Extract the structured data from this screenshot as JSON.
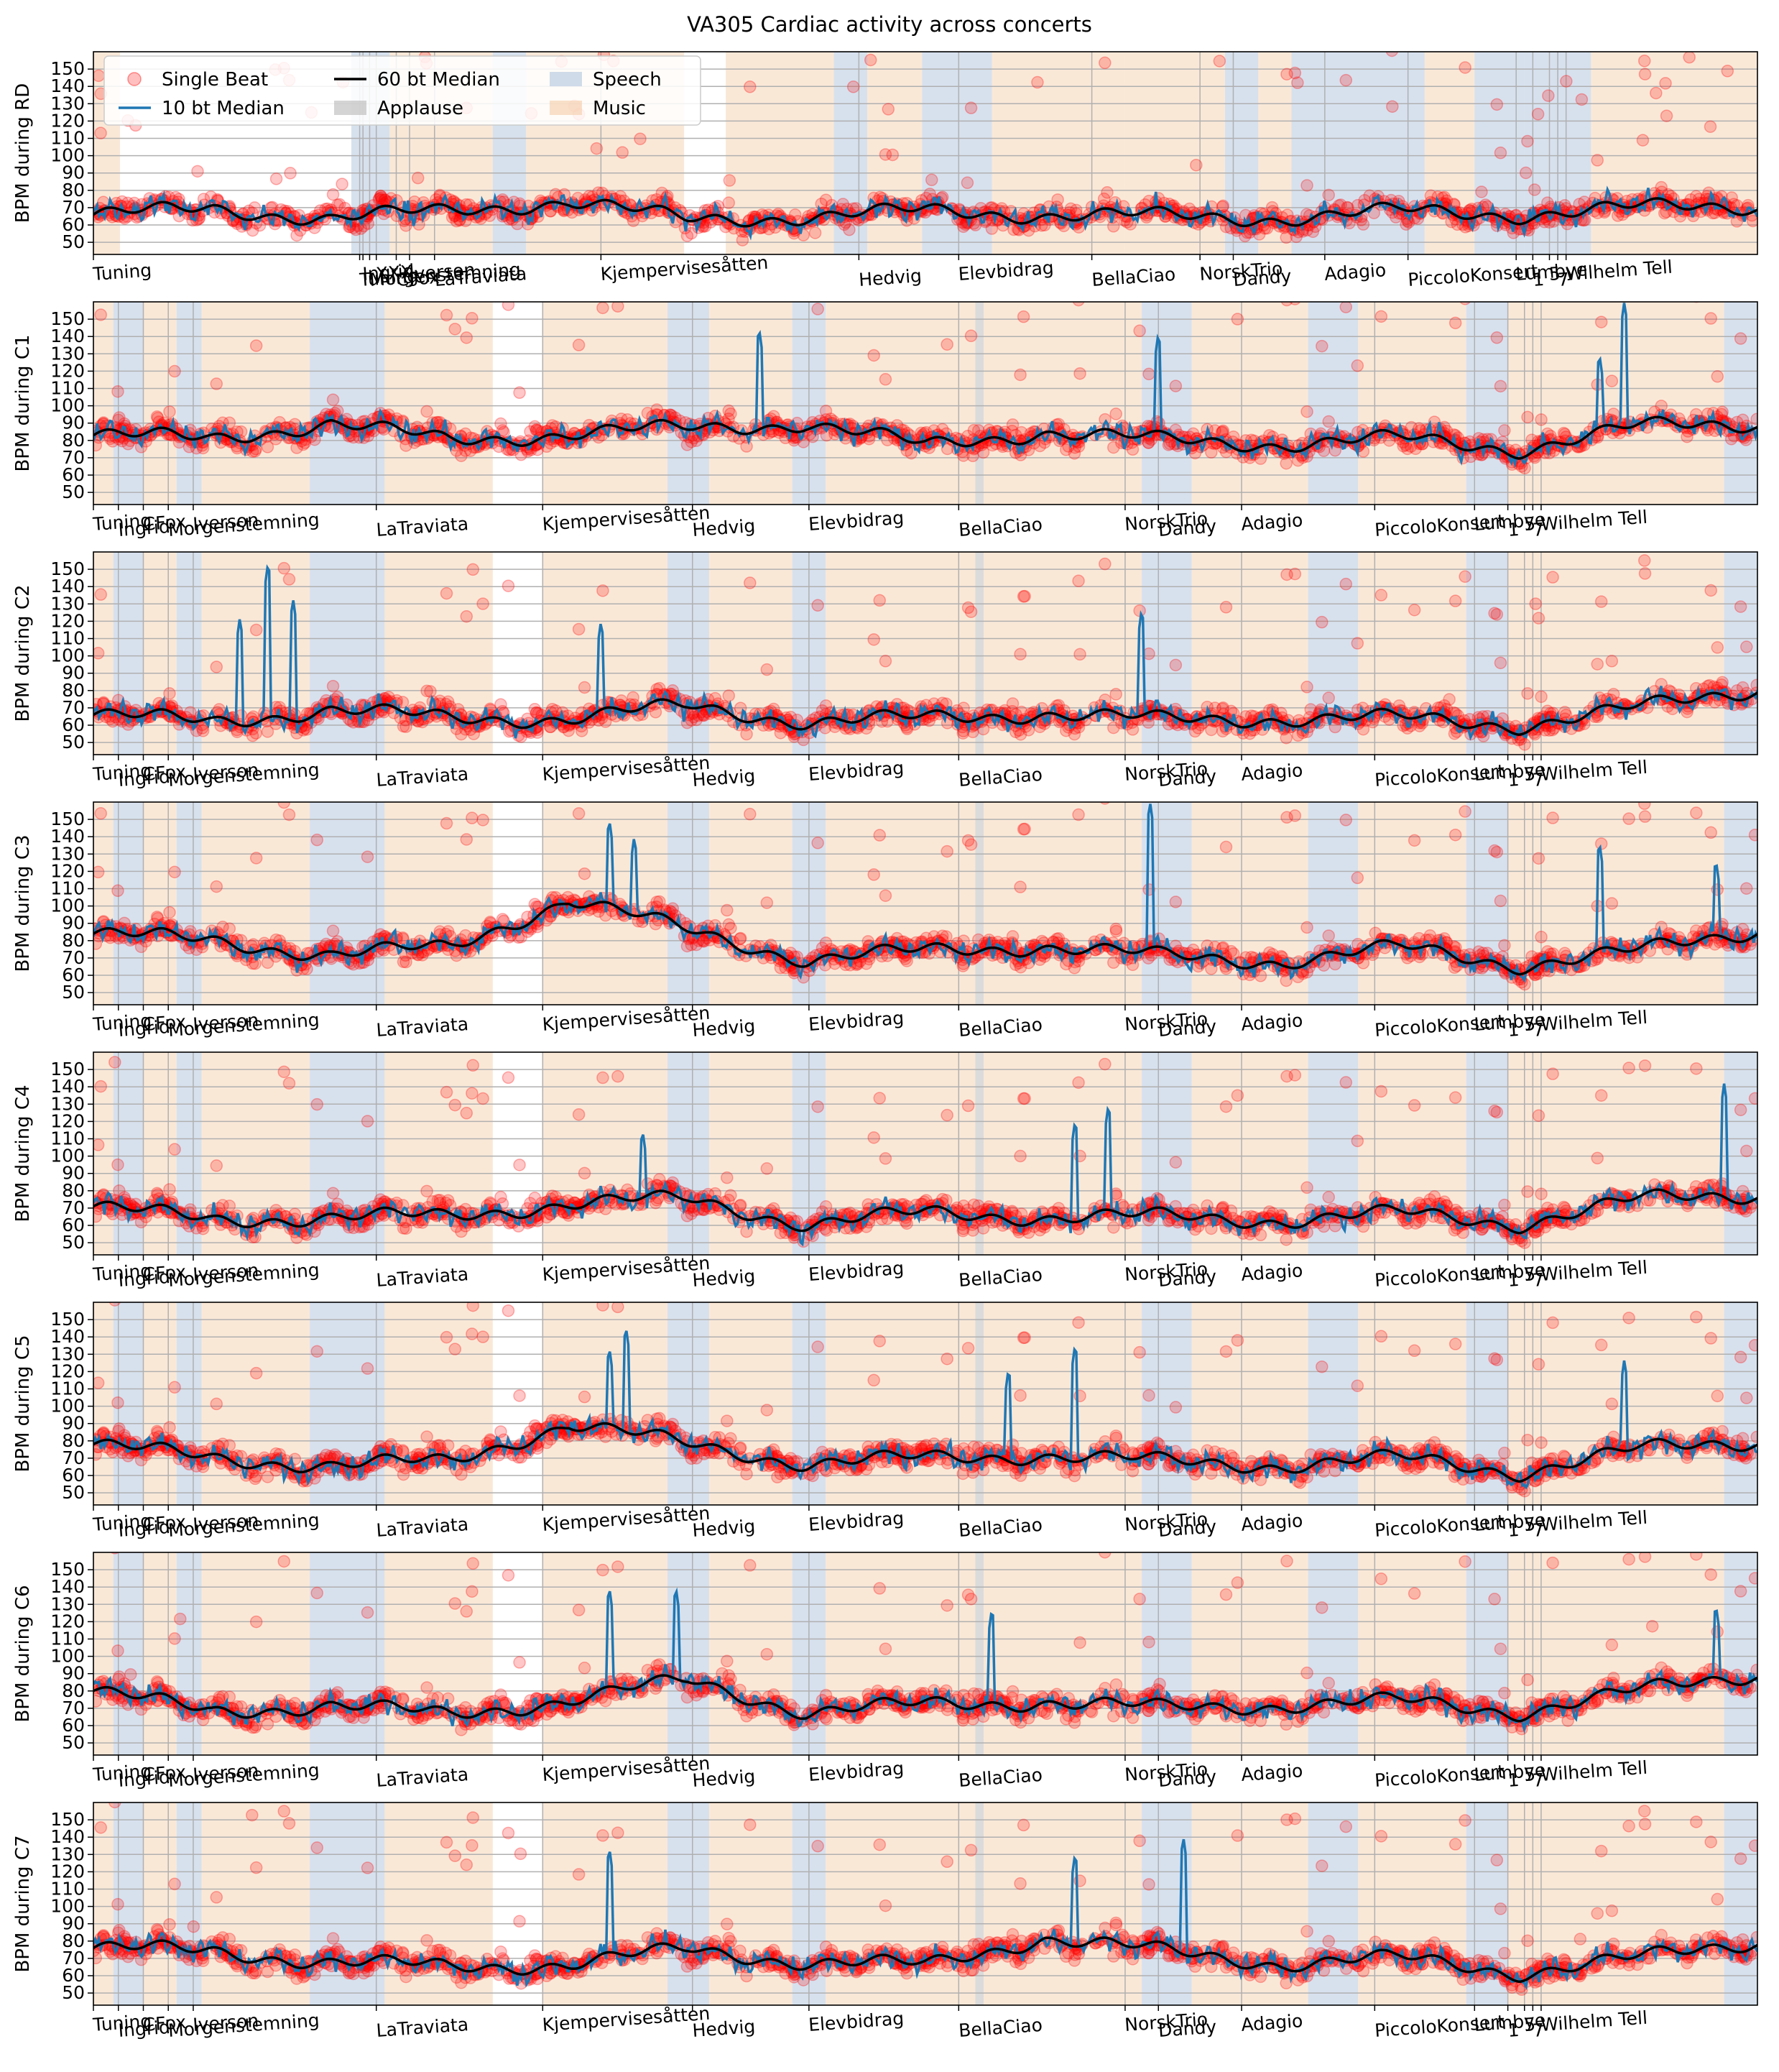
{
  "title": "VA305 Cardiac activity across concerts",
  "legend": [
    {
      "label": "Single Beat",
      "kind": "marker",
      "color": "#ff0000"
    },
    {
      "label": "10 bt Median",
      "kind": "line",
      "color": "#1f77b4"
    },
    {
      "label": "60 bt Median",
      "kind": "line",
      "color": "#000000"
    },
    {
      "label": "Applause",
      "kind": "patch",
      "color": "#b8b8b8"
    },
    {
      "label": "Speech",
      "kind": "patch",
      "color": "#b0c4de"
    },
    {
      "label": "Music",
      "kind": "patch",
      "color": "#f5cba7"
    }
  ],
  "chart_data": {
    "type": "line",
    "title": "VA305 Cardiac activity across concerts",
    "ylim": [
      43,
      160
    ],
    "yticks": [
      50,
      60,
      70,
      80,
      90,
      100,
      110,
      120,
      130,
      140,
      150
    ],
    "grid": true,
    "legend_position": "upper-left of first panel",
    "series_names": [
      "Single Beat",
      "10 bt Median",
      "60 bt Median"
    ],
    "colors": {
      "single_beat": "#ff0000",
      "median10": "#1f77b4",
      "median60": "#000000",
      "speech": "#b0c4de",
      "music": "#f5cba7",
      "applause": "#b8b8b8"
    },
    "panels": [
      {
        "ylabel": "BPM during RD",
        "baseline60": 66,
        "markers": [
          {
            "x": 0.0,
            "label": "Tuning"
          },
          {
            "x": 0.16,
            "label": "Tuning"
          },
          {
            "x": 0.162,
            "label": "Ingrid"
          },
          {
            "x": 0.166,
            "label": "Morgenstemning"
          },
          {
            "x": 0.17,
            "label": "XXX"
          },
          {
            "x": 0.182,
            "label": "CFox"
          },
          {
            "x": 0.19,
            "label": "Iverson"
          },
          {
            "x": 0.205,
            "label": "LaTraviata"
          },
          {
            "x": 0.305,
            "label": "Kjempervisesåtten"
          },
          {
            "x": 0.46,
            "label": "Hedvig"
          },
          {
            "x": 0.52,
            "label": "Elevbidrag"
          },
          {
            "x": 0.6,
            "label": "BellaCiao"
          },
          {
            "x": 0.665,
            "label": "NorskTrio"
          },
          {
            "x": 0.685,
            "label": "Dandy"
          },
          {
            "x": 0.74,
            "label": "Adagio"
          },
          {
            "x": 0.79,
            "label": "PiccoloKonsert"
          },
          {
            "x": 0.855,
            "label": "Lumbye"
          },
          {
            "x": 0.865,
            "label": "1"
          },
          {
            "x": 0.875,
            "label": "5"
          },
          {
            "x": 0.88,
            "label": "7"
          },
          {
            "x": 0.885,
            "label": "Wilhelm Tell"
          }
        ],
        "regions": [
          {
            "s": 0.0,
            "e": 0.016,
            "t": "music"
          },
          {
            "s": 0.155,
            "e": 0.178,
            "t": "speech"
          },
          {
            "s": 0.178,
            "e": 0.19,
            "t": "music"
          },
          {
            "s": 0.19,
            "e": 0.24,
            "t": "music"
          },
          {
            "s": 0.24,
            "e": 0.26,
            "t": "speech"
          },
          {
            "s": 0.26,
            "e": 0.355,
            "t": "music"
          },
          {
            "s": 0.38,
            "e": 0.445,
            "t": "music"
          },
          {
            "s": 0.445,
            "e": 0.465,
            "t": "speech"
          },
          {
            "s": 0.465,
            "e": 0.498,
            "t": "music"
          },
          {
            "s": 0.498,
            "e": 0.54,
            "t": "speech"
          },
          {
            "s": 0.54,
            "e": 0.62,
            "t": "music"
          },
          {
            "s": 0.62,
            "e": 0.68,
            "t": "music"
          },
          {
            "s": 0.68,
            "e": 0.7,
            "t": "speech"
          },
          {
            "s": 0.7,
            "e": 0.72,
            "t": "music"
          },
          {
            "s": 0.72,
            "e": 0.8,
            "t": "speech"
          },
          {
            "s": 0.8,
            "e": 0.83,
            "t": "music"
          },
          {
            "s": 0.83,
            "e": 0.86,
            "t": "speech"
          },
          {
            "s": 0.86,
            "e": 0.9,
            "t": "speech"
          },
          {
            "s": 0.9,
            "e": 1.0,
            "t": "music"
          }
        ],
        "peaks": [],
        "drift": [
          0,
          3,
          -2,
          2,
          8,
          -3,
          -1,
          2,
          0,
          -1,
          -2,
          2,
          0,
          4,
          5
        ]
      },
      {
        "ylabel": "BPM during C1",
        "baseline60": 80,
        "markers": [],
        "regions": [],
        "peaks": [
          {
            "x": 0.4,
            "h": 145
          },
          {
            "x": 0.64,
            "h": 142
          },
          {
            "x": 0.905,
            "h": 130
          },
          {
            "x": 0.92,
            "h": 160
          }
        ],
        "drift": [
          3,
          1,
          10,
          0,
          4,
          7,
          10,
          -3,
          5,
          0,
          -2,
          1,
          -5,
          8,
          10
        ]
      },
      {
        "ylabel": "BPM during C2",
        "baseline60": 64,
        "markers": [],
        "regions": [],
        "peaks": [
          {
            "x": 0.088,
            "h": 122
          },
          {
            "x": 0.105,
            "h": 154
          },
          {
            "x": 0.12,
            "h": 133
          },
          {
            "x": 0.305,
            "h": 120
          },
          {
            "x": 0.63,
            "h": 127
          }
        ],
        "drift": [
          2,
          -2,
          5,
          0,
          0,
          7,
          -2,
          0,
          3,
          -1,
          0,
          0,
          -4,
          6,
          17
        ]
      },
      {
        "ylabel": "BPM during C3",
        "baseline60": 74,
        "markers": [],
        "regions": [],
        "peaks": [
          {
            "x": 0.31,
            "h": 150
          },
          {
            "x": 0.325,
            "h": 140
          },
          {
            "x": 0.635,
            "h": 160
          },
          {
            "x": 0.905,
            "h": 137
          },
          {
            "x": 0.975,
            "h": 127
          }
        ],
        "drift": [
          10,
          6,
          -2,
          2,
          30,
          12,
          -5,
          0,
          3,
          -3,
          -6,
          2,
          -8,
          0,
          12
        ]
      },
      {
        "ylabel": "BPM during C4",
        "baseline60": 65,
        "markers": [],
        "regions": [],
        "peaks": [
          {
            "x": 0.33,
            "h": 115
          },
          {
            "x": 0.59,
            "h": 121
          },
          {
            "x": 0.61,
            "h": 130
          },
          {
            "x": 0.98,
            "h": 142
          }
        ],
        "drift": [
          6,
          -2,
          0,
          0,
          8,
          10,
          -4,
          2,
          0,
          0,
          -2,
          2,
          -4,
          10,
          13
        ]
      },
      {
        "ylabel": "BPM during C5",
        "baseline60": 70,
        "markers": [],
        "regions": [],
        "peaks": [
          {
            "x": 0.31,
            "h": 134
          },
          {
            "x": 0.32,
            "h": 146
          },
          {
            "x": 0.55,
            "h": 122
          },
          {
            "x": 0.59,
            "h": 136
          },
          {
            "x": 0.92,
            "h": 127
          }
        ],
        "drift": [
          8,
          0,
          -4,
          -2,
          20,
          8,
          -3,
          0,
          2,
          -2,
          -4,
          0,
          -8,
          5,
          10
        ]
      },
      {
        "ylabel": "BPM during C6",
        "baseline60": 72,
        "markers": [],
        "regions": [],
        "peaks": [
          {
            "x": 0.31,
            "h": 140
          },
          {
            "x": 0.35,
            "h": 140
          },
          {
            "x": 0.54,
            "h": 128
          },
          {
            "x": 0.975,
            "h": 130
          }
        ],
        "drift": [
          8,
          -4,
          0,
          -6,
          3,
          14,
          -4,
          0,
          2,
          -2,
          0,
          2,
          -4,
          8,
          18
        ]
      },
      {
        "ylabel": "BPM during C7",
        "baseline60": 70,
        "markers": [],
        "regions": [],
        "peaks": [
          {
            "x": 0.31,
            "h": 134
          },
          {
            "x": 0.59,
            "h": 131
          },
          {
            "x": 0.655,
            "h": 140
          }
        ],
        "drift": [
          6,
          4,
          -2,
          -5,
          -3,
          5,
          -2,
          -4,
          12,
          4,
          -3,
          0,
          -8,
          0,
          10
        ]
      }
    ]
  },
  "xtick_labels": [
    "Tuning",
    "Ingrid",
    "CFox",
    "Morgenstemning",
    "LaTraviata",
    "Kjempervisesåtten",
    "Hedvig",
    "Elevbidrag",
    "BellaCiao",
    "NorskTrio",
    "Dandy",
    "Adagio",
    "PiccoloKonsert",
    "Lumbye",
    "Wilhelm Tell",
    "1",
    "5",
    "7"
  ]
}
